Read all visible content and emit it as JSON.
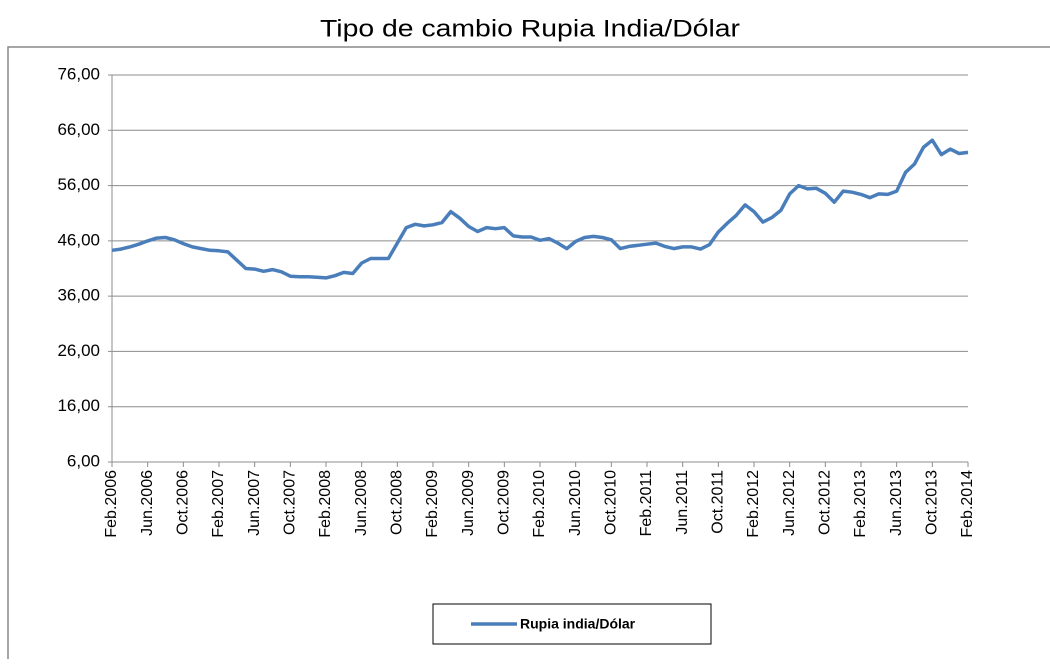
{
  "chart_data": {
    "type": "line",
    "title": "Tipo de cambio Rupia India/Dólar",
    "categories": [
      "Feb.2006",
      null,
      null,
      null,
      "Jun.2006",
      null,
      null,
      null,
      "Oct.2006",
      null,
      null,
      null,
      "Feb.2007",
      null,
      null,
      null,
      "Jun.2007",
      null,
      null,
      null,
      "Oct.2007",
      null,
      null,
      null,
      "Feb.2008",
      null,
      null,
      null,
      "Jun.2008",
      null,
      null,
      null,
      "Oct.2008",
      null,
      null,
      null,
      "Feb.2009",
      null,
      null,
      null,
      "Jun.2009",
      null,
      null,
      null,
      "Oct.2009",
      null,
      null,
      null,
      "Feb.2010",
      null,
      null,
      null,
      "Jun.2010",
      null,
      null,
      null,
      "Oct.2010",
      null,
      null,
      null,
      "Feb.2011",
      null,
      null,
      null,
      "Jun.2011",
      null,
      null,
      null,
      "Oct.2011",
      null,
      null,
      null,
      "Feb.2012",
      null,
      null,
      null,
      "Jun.2012",
      null,
      null,
      null,
      "Oct.2012",
      null,
      null,
      null,
      "Feb.2013",
      null,
      null,
      null,
      "Jun.2013",
      null,
      null,
      null,
      "Oct.2013",
      null,
      null,
      null,
      "Feb.2014"
    ],
    "series": [
      {
        "name": "Rupia india/Dólar",
        "color": "#4a7ebb",
        "values": [
          44.3,
          44.5,
          44.9,
          45.4,
          46.0,
          46.5,
          46.6,
          46.2,
          45.5,
          44.9,
          44.6,
          44.3,
          44.2,
          44.0,
          42.5,
          41.0,
          40.9,
          40.5,
          40.8,
          40.4,
          39.6,
          39.5,
          39.5,
          39.4,
          39.3,
          39.7,
          40.3,
          40.1,
          42.0,
          42.8,
          42.8,
          42.8,
          45.6,
          48.4,
          49.0,
          48.7,
          48.9,
          49.3,
          51.3,
          50.1,
          48.6,
          47.7,
          48.4,
          48.2,
          48.4,
          46.9,
          46.7,
          46.7,
          46.1,
          46.4,
          45.6,
          44.6,
          45.9,
          46.6,
          46.8,
          46.6,
          46.2,
          44.6,
          45.0,
          45.2,
          45.4,
          45.6,
          45.0,
          44.6,
          44.9,
          44.9,
          44.5,
          45.3,
          47.6,
          49.2,
          50.6,
          52.5,
          51.3,
          49.4,
          50.2,
          51.5,
          54.5,
          56.0,
          55.4,
          55.5,
          54.6,
          53.0,
          55.0,
          54.8,
          54.4,
          53.8,
          54.5,
          54.4,
          55.0,
          58.4,
          59.9,
          62.9,
          64.2,
          61.6,
          62.6,
          61.8,
          62.0
        ]
      }
    ],
    "ylim": [
      6,
      76
    ],
    "yticks": [
      {
        "value": 6,
        "label": "6,00"
      },
      {
        "value": 16,
        "label": "16,00"
      },
      {
        "value": 26,
        "label": "26,00"
      },
      {
        "value": 36,
        "label": "36,00"
      },
      {
        "value": 46,
        "label": "46,00"
      },
      {
        "value": 56,
        "label": "56,00"
      },
      {
        "value": 66,
        "label": "66,00"
      },
      {
        "value": 76,
        "label": "76,00"
      }
    ],
    "grid": true,
    "legend": "bottom"
  }
}
